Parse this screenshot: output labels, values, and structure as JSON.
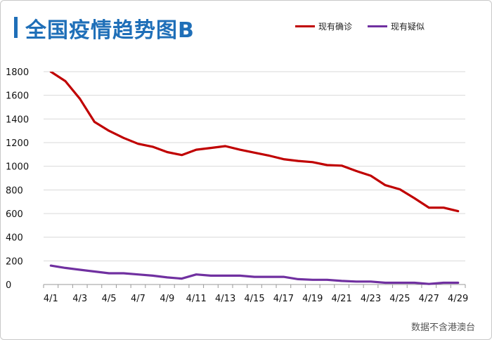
{
  "header": {
    "title": "全国疫情趋势图B"
  },
  "footer": {
    "source_note": "数据不含港澳台"
  },
  "colors": {
    "title": "#1f6fb8",
    "confirmed": "#c00000",
    "suspected": "#7030a0",
    "grid": "#d9d9d9"
  },
  "chart_data": {
    "type": "line",
    "title": "全国疫情趋势图B",
    "xlabel": "",
    "ylabel": "",
    "ylim": [
      0,
      1800
    ],
    "y_ticks": [
      0,
      200,
      400,
      600,
      800,
      1000,
      1200,
      1400,
      1600,
      1800
    ],
    "grid": "horizontal",
    "legend_position": "top-right",
    "x": [
      "4/1",
      "4/2",
      "4/3",
      "4/4",
      "4/5",
      "4/6",
      "4/7",
      "4/8",
      "4/9",
      "4/10",
      "4/11",
      "4/12",
      "4/13",
      "4/14",
      "4/15",
      "4/16",
      "4/17",
      "4/18",
      "4/19",
      "4/20",
      "4/21",
      "4/22",
      "4/23",
      "4/24",
      "4/25",
      "4/26",
      "4/27",
      "4/28",
      "4/29"
    ],
    "x_tick_labels": [
      "4/1",
      "4/3",
      "4/5",
      "4/7",
      "4/9",
      "4/11",
      "4/13",
      "4/15",
      "4/17",
      "4/19",
      "4/21",
      "4/23",
      "4/25",
      "4/27",
      "4/29"
    ],
    "series": [
      {
        "name": "现有确诊",
        "color": "#c00000",
        "values": [
          1800,
          1720,
          1570,
          1375,
          1300,
          1240,
          1190,
          1165,
          1120,
          1095,
          1140,
          1155,
          1170,
          1140,
          1115,
          1090,
          1060,
          1045,
          1035,
          1010,
          1005,
          960,
          920,
          840,
          805,
          730,
          650,
          650,
          620
        ]
      },
      {
        "name": "现有疑似",
        "color": "#7030a0",
        "values": [
          160,
          140,
          125,
          110,
          95,
          95,
          85,
          75,
          60,
          50,
          85,
          75,
          75,
          75,
          65,
          65,
          65,
          45,
          40,
          40,
          30,
          25,
          25,
          15,
          15,
          15,
          5,
          15,
          15
        ]
      }
    ]
  }
}
